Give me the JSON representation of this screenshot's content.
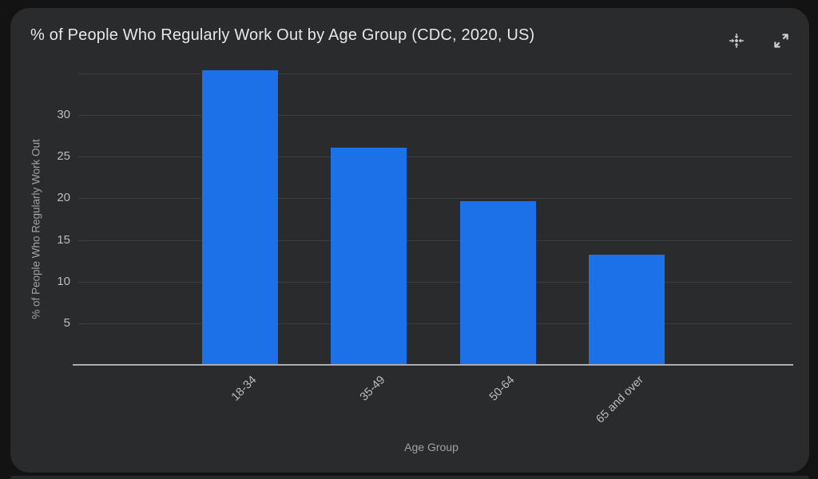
{
  "card": {
    "title": "% of People Who Regularly Work Out by Age Group (CDC, 2020, US)",
    "icons": {
      "move": "move-icon",
      "expand": "expand-icon"
    }
  },
  "chart_data": {
    "type": "bar",
    "title": "% of People Who Regularly Work Out by Age Group (CDC, 2020, US)",
    "categories": [
      "18-34",
      "35-49",
      "50-64",
      "65 and over"
    ],
    "values": [
      35.4,
      26.1,
      19.7,
      13.2
    ],
    "xlabel": "Age Group",
    "ylabel": "% of People Who Regularly Work Out",
    "yticks": [
      5,
      10,
      15,
      20,
      25,
      30
    ],
    "grid_max": 35,
    "ylim": [
      0,
      36.5
    ],
    "grid": true,
    "legend": "none",
    "bar_color": "#1c70e8",
    "background_color": "#2a2b2d",
    "page_background_color": "#131314"
  }
}
